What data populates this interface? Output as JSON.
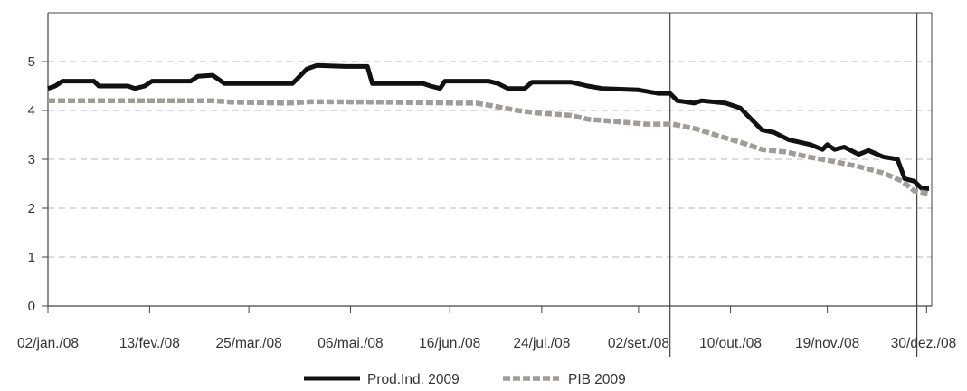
{
  "chart_data": {
    "type": "line",
    "title": "",
    "xlabel": "",
    "ylabel": "",
    "ylim": [
      0,
      6
    ],
    "y_ticks": [
      0,
      1,
      2,
      3,
      4,
      5
    ],
    "grid": "horizontal dashed",
    "legend_position": "bottom-center",
    "x_tick_labels": [
      "02/jan./08",
      "13/fev./08",
      "25/mar./08",
      "06/mai./08",
      "16/jun./08",
      "24/jul./08",
      "02/set./08",
      "10/out./08",
      "19/nov./08",
      "30/dez./08"
    ],
    "x_tick_dates": [
      "2008-01-02",
      "2008-02-13",
      "2008-03-25",
      "2008-05-06",
      "2008-06-16",
      "2008-07-24",
      "2008-09-02",
      "2008-10-10",
      "2008-11-19",
      "2008-12-30"
    ],
    "reference_lines": [
      "2008-09-15",
      "2008-12-26"
    ],
    "series": [
      {
        "name": "Prod.Ind. 2009",
        "color": "#111111",
        "style": "solid",
        "points": [
          [
            "2008-01-02",
            4.45
          ],
          [
            "2008-01-05",
            4.5
          ],
          [
            "2008-01-08",
            4.6
          ],
          [
            "2008-01-21",
            4.6
          ],
          [
            "2008-01-23",
            4.5
          ],
          [
            "2008-02-04",
            4.5
          ],
          [
            "2008-02-07",
            4.45
          ],
          [
            "2008-02-11",
            4.5
          ],
          [
            "2008-02-14",
            4.6
          ],
          [
            "2008-03-01",
            4.6
          ],
          [
            "2008-03-04",
            4.7
          ],
          [
            "2008-03-10",
            4.72
          ],
          [
            "2008-03-15",
            4.55
          ],
          [
            "2008-04-12",
            4.55
          ],
          [
            "2008-04-15",
            4.7
          ],
          [
            "2008-04-18",
            4.85
          ],
          [
            "2008-04-22",
            4.92
          ],
          [
            "2008-05-04",
            4.9
          ],
          [
            "2008-05-13",
            4.9
          ],
          [
            "2008-05-15",
            4.55
          ],
          [
            "2008-06-05",
            4.55
          ],
          [
            "2008-06-08",
            4.5
          ],
          [
            "2008-06-12",
            4.45
          ],
          [
            "2008-06-14",
            4.6
          ],
          [
            "2008-07-02",
            4.6
          ],
          [
            "2008-07-06",
            4.55
          ],
          [
            "2008-07-10",
            4.45
          ],
          [
            "2008-07-17",
            4.45
          ],
          [
            "2008-07-20",
            4.58
          ],
          [
            "2008-08-05",
            4.58
          ],
          [
            "2008-08-12",
            4.5
          ],
          [
            "2008-08-18",
            4.45
          ],
          [
            "2008-09-02",
            4.42
          ],
          [
            "2008-09-10",
            4.35
          ],
          [
            "2008-09-15",
            4.35
          ],
          [
            "2008-09-18",
            4.2
          ],
          [
            "2008-09-25",
            4.15
          ],
          [
            "2008-09-28",
            4.2
          ],
          [
            "2008-10-08",
            4.15
          ],
          [
            "2008-10-14",
            4.05
          ],
          [
            "2008-10-18",
            3.85
          ],
          [
            "2008-10-23",
            3.6
          ],
          [
            "2008-10-28",
            3.55
          ],
          [
            "2008-11-03",
            3.4
          ],
          [
            "2008-11-12",
            3.3
          ],
          [
            "2008-11-17",
            3.2
          ],
          [
            "2008-11-19",
            3.3
          ],
          [
            "2008-11-22",
            3.2
          ],
          [
            "2008-11-26",
            3.25
          ],
          [
            "2008-12-02",
            3.1
          ],
          [
            "2008-12-06",
            3.18
          ],
          [
            "2008-12-12",
            3.05
          ],
          [
            "2008-12-18",
            3.0
          ],
          [
            "2008-12-21",
            2.6
          ],
          [
            "2008-12-25",
            2.55
          ],
          [
            "2008-12-28",
            2.4
          ],
          [
            "2008-12-31",
            2.4
          ]
        ]
      },
      {
        "name": "PIB 2009",
        "color": "#a09c98",
        "style": "dashed",
        "points": [
          [
            "2008-01-02",
            4.2
          ],
          [
            "2008-03-10",
            4.2
          ],
          [
            "2008-03-18",
            4.17
          ],
          [
            "2008-04-10",
            4.15
          ],
          [
            "2008-04-20",
            4.18
          ],
          [
            "2008-05-20",
            4.17
          ],
          [
            "2008-06-20",
            4.15
          ],
          [
            "2008-06-27",
            4.15
          ],
          [
            "2008-07-03",
            4.1
          ],
          [
            "2008-07-14",
            4.0
          ],
          [
            "2008-07-22",
            3.95
          ],
          [
            "2008-08-05",
            3.9
          ],
          [
            "2008-08-12",
            3.82
          ],
          [
            "2008-08-22",
            3.78
          ],
          [
            "2008-09-05",
            3.72
          ],
          [
            "2008-09-16",
            3.72
          ],
          [
            "2008-09-26",
            3.62
          ],
          [
            "2008-10-05",
            3.48
          ],
          [
            "2008-10-14",
            3.35
          ],
          [
            "2008-10-23",
            3.2
          ],
          [
            "2008-11-02",
            3.15
          ],
          [
            "2008-11-11",
            3.05
          ],
          [
            "2008-11-22",
            2.95
          ],
          [
            "2008-12-02",
            2.85
          ],
          [
            "2008-12-12",
            2.72
          ],
          [
            "2008-12-20",
            2.55
          ],
          [
            "2008-12-25",
            2.35
          ],
          [
            "2008-12-31",
            2.3
          ]
        ]
      }
    ]
  }
}
